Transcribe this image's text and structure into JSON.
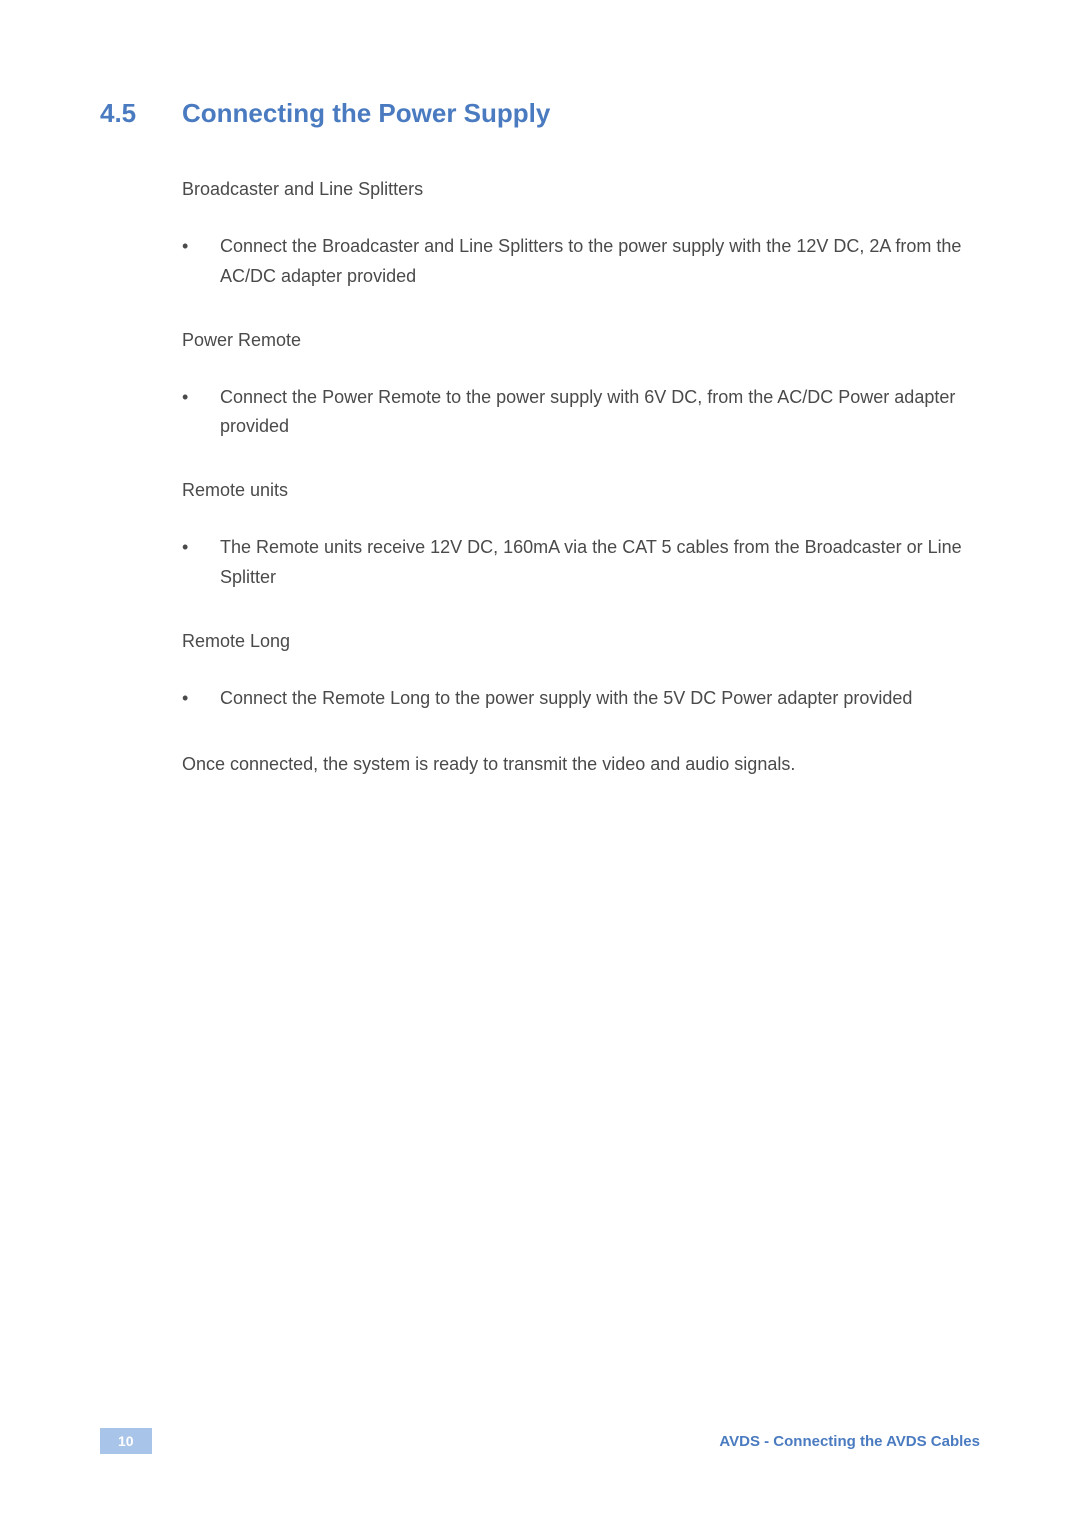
{
  "heading": {
    "number": "4.5",
    "title": "Connecting the Power Supply"
  },
  "sections": [
    {
      "subheading": "Broadcaster and Line Splitters",
      "bullet": "Connect the Broadcaster and Line Splitters to the power supply with the 12V DC, 2A from the AC/DC adapter provided"
    },
    {
      "subheading": "Power Remote",
      "bullet": "Connect the Power Remote to the power supply with 6V DC, from the AC/DC Power adapter provided"
    },
    {
      "subheading": "Remote units",
      "bullet": "The Remote units receive 12V DC, 160mA via the CAT 5 cables from the Broadcaster or Line Splitter"
    },
    {
      "subheading": "Remote Long",
      "bullet": "Connect the Remote Long to the power supply with the 5V DC Power adapter provided"
    }
  ],
  "closing": "Once connected, the system is ready to transmit the video and audio signals.",
  "footer": {
    "pageNumber": "10",
    "text": "AVDS - Connecting the AVDS Cables"
  },
  "colors": {
    "headingColor": "#4a7bc0",
    "textColor": "#4a4a4a",
    "pageNumberBg": "#a8c4e8",
    "pageNumberText": "#ffffff",
    "background": "#ffffff"
  },
  "typography": {
    "headingFontSize": 26,
    "bodyFontSize": 18,
    "footerFontSize": 15,
    "pageNumberFontSize": 14
  }
}
